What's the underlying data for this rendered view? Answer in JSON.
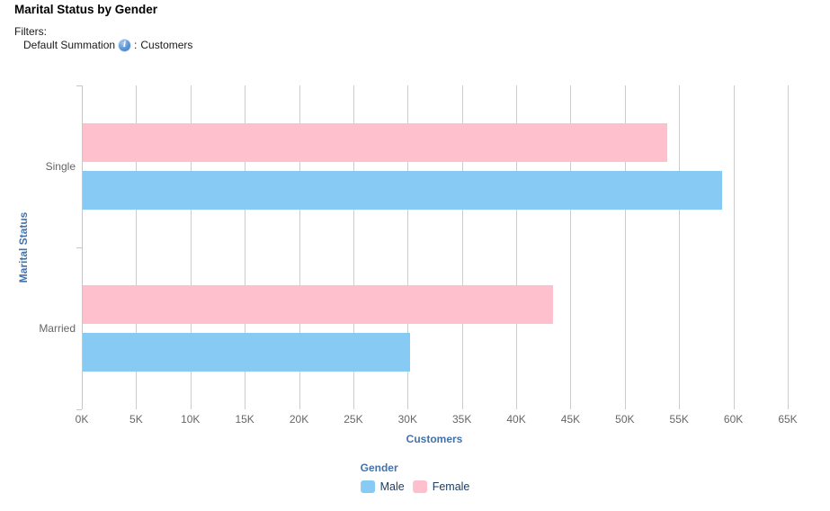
{
  "header": {
    "title": "Marital Status by Gender",
    "filters_label": "Filters:",
    "filter": {
      "name": "Default Summation",
      "info_icon": "info-icon",
      "separator": ":",
      "value": "Customers"
    }
  },
  "chart_data": {
    "type": "bar",
    "orientation": "horizontal",
    "title": "Marital Status by Gender",
    "categories": [
      "Single",
      "Married"
    ],
    "series": [
      {
        "name": "Male",
        "color": "#87cbf5",
        "values": [
          58900,
          30100
        ]
      },
      {
        "name": "Female",
        "color": "#ffc0cd",
        "values": [
          53800,
          43300
        ]
      }
    ],
    "xlabel": "Customers",
    "ylabel": "Marital Status",
    "xlim": [
      0,
      65000
    ],
    "x_tick_step": 5000,
    "x_tick_labels": [
      "0K",
      "5K",
      "10K",
      "15K",
      "20K",
      "25K",
      "30K",
      "35K",
      "40K",
      "45K",
      "50K",
      "55K",
      "60K",
      "65K"
    ],
    "grid": true,
    "legend_title": "Gender",
    "legend_position": "bottom"
  },
  "legend": {
    "title": "Gender",
    "items": [
      {
        "label": "Male",
        "color": "#87cbf5"
      },
      {
        "label": "Female",
        "color": "#ffc0cd"
      }
    ]
  },
  "colors": {
    "male_bar": "#87cbf5",
    "female_bar": "#ffc0cd",
    "axis_title": "#4472a8",
    "tick_label": "#666666",
    "gridline": "#cccccc",
    "axis_line": "#b7c9da",
    "legend_text": "#1d3d5e",
    "title_text": "#000000"
  }
}
